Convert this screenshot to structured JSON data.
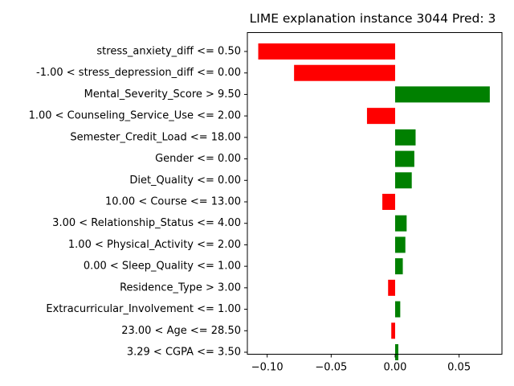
{
  "chart_data": {
    "type": "bar",
    "orientation": "horizontal",
    "title": "LIME explanation instance 3044 Pred: 3",
    "xlabel": "",
    "ylabel": "",
    "categories": [
      "stress_anxiety_diff <= 0.50",
      "-1.00 < stress_depression_diff <= 0.00",
      "Mental_Severity_Score > 9.50",
      "1.00 < Counseling_Service_Use <= 2.00",
      "Semester_Credit_Load <= 18.00",
      "Gender <= 0.00",
      "Diet_Quality <= 0.00",
      "10.00 < Course <= 13.00",
      "3.00 < Relationship_Status <= 4.00",
      "1.00 < Physical_Activity <= 2.00",
      "0.00 < Sleep_Quality <= 1.00",
      "Residence_Type > 3.00",
      "Extracurricular_Involvement <= 1.00",
      "23.00 < Age <= 28.50",
      "3.29 < CGPA <= 3.50"
    ],
    "values": [
      -0.107,
      -0.079,
      0.074,
      -0.022,
      0.016,
      0.015,
      0.013,
      -0.01,
      0.009,
      0.008,
      0.006,
      -0.0055,
      0.004,
      -0.003,
      0.0025
    ],
    "xlim": [
      -0.1155,
      0.0835
    ],
    "xticks": [
      -0.1,
      -0.05,
      0.0,
      0.05
    ],
    "xtick_labels": [
      "−0.10",
      "−0.05",
      "0.00",
      "0.05"
    ],
    "grid": false,
    "colors": {
      "positive": "#008000",
      "negative": "#ff0000",
      "axis": "#000000"
    }
  }
}
